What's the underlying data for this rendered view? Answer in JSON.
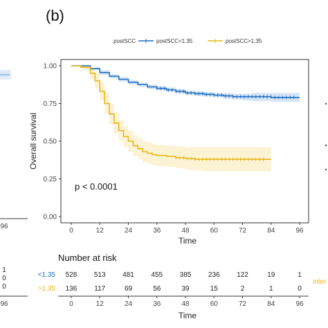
{
  "panel_label": "(b)",
  "chart_data": {
    "type": "line",
    "subtype": "kaplan-meier",
    "title": "",
    "xlabel": "Time",
    "ylabel": "Overall survival",
    "xlim": [
      0,
      96
    ],
    "ylim": [
      0,
      1
    ],
    "x_ticks": [
      0,
      12,
      24,
      36,
      48,
      60,
      72,
      84,
      96
    ],
    "y_ticks": [
      "0.00",
      "0.25",
      "0.50",
      "0.75",
      "1.00"
    ],
    "grid": false,
    "legend": {
      "position": "top",
      "title": "postSCC",
      "entries": [
        "postSCC<1.35",
        "postSCC>1.35"
      ]
    },
    "annotation": "p < 0.0001",
    "series": [
      {
        "name": "postSCC<1.35",
        "color": "#1f6fc1",
        "band_color": "#cfe0f3",
        "x": [
          0,
          4,
          8,
          12,
          16,
          20,
          24,
          28,
          32,
          36,
          40,
          44,
          48,
          52,
          56,
          60,
          64,
          68,
          72,
          76,
          80,
          84,
          88,
          92,
          96
        ],
        "y": [
          1.0,
          1.0,
          0.98,
          0.955,
          0.93,
          0.91,
          0.89,
          0.875,
          0.86,
          0.85,
          0.84,
          0.83,
          0.82,
          0.815,
          0.81,
          0.805,
          0.8,
          0.795,
          0.795,
          0.795,
          0.795,
          0.79,
          0.79,
          0.79,
          0.79
        ],
        "lower": [
          1.0,
          0.995,
          0.97,
          0.94,
          0.915,
          0.895,
          0.875,
          0.86,
          0.845,
          0.835,
          0.825,
          0.815,
          0.805,
          0.8,
          0.795,
          0.79,
          0.78,
          0.775,
          0.77,
          0.765,
          0.765,
          0.76,
          0.76,
          0.76,
          0.76
        ],
        "upper": [
          1.0,
          1.0,
          0.99,
          0.97,
          0.945,
          0.925,
          0.905,
          0.89,
          0.875,
          0.865,
          0.855,
          0.845,
          0.835,
          0.83,
          0.825,
          0.82,
          0.82,
          0.815,
          0.815,
          0.82,
          0.82,
          0.82,
          0.82,
          0.82,
          0.82
        ]
      },
      {
        "name": "postSCC>1.35",
        "color": "#e8b81a",
        "band_color": "#fbf0cc",
        "x": [
          0,
          4,
          8,
          10,
          12,
          14,
          16,
          18,
          20,
          22,
          24,
          26,
          28,
          30,
          32,
          34,
          36,
          40,
          44,
          48,
          52,
          56,
          60,
          64,
          68,
          72,
          76,
          80,
          84
        ],
        "y": [
          1.0,
          0.99,
          0.95,
          0.9,
          0.83,
          0.75,
          0.68,
          0.62,
          0.57,
          0.53,
          0.5,
          0.47,
          0.45,
          0.43,
          0.42,
          0.41,
          0.405,
          0.4,
          0.39,
          0.385,
          0.38,
          0.38,
          0.38,
          0.38,
          0.38,
          0.38,
          0.38,
          0.38,
          0.38
        ],
        "lower": [
          1.0,
          0.97,
          0.91,
          0.85,
          0.77,
          0.68,
          0.61,
          0.55,
          0.5,
          0.46,
          0.43,
          0.4,
          0.38,
          0.36,
          0.35,
          0.34,
          0.335,
          0.33,
          0.32,
          0.31,
          0.305,
          0.3,
          0.3,
          0.3,
          0.3,
          0.3,
          0.3,
          0.3,
          0.3
        ],
        "upper": [
          1.0,
          1.0,
          0.99,
          0.95,
          0.89,
          0.82,
          0.75,
          0.69,
          0.64,
          0.6,
          0.57,
          0.54,
          0.52,
          0.5,
          0.49,
          0.48,
          0.475,
          0.47,
          0.465,
          0.46,
          0.46,
          0.46,
          0.46,
          0.46,
          0.46,
          0.46,
          0.46,
          0.46,
          0.46
        ]
      }
    ],
    "risk_table": {
      "title": "Number at risk",
      "xlabel": "Time",
      "x_ticks": [
        0,
        12,
        24,
        36,
        48,
        60,
        72,
        84,
        96
      ],
      "rows": [
        {
          "label": "<1.35",
          "color": "#1f6fc1",
          "values": [
            "528",
            "513",
            "481",
            "455",
            "385",
            "236",
            "122",
            "19",
            "1"
          ]
        },
        {
          "label": ">1.35",
          "color": "#e8b81a",
          "values": [
            "136",
            "117",
            "69",
            "56",
            "39",
            "15",
            "2",
            "1",
            "0"
          ]
        }
      ]
    }
  },
  "left_fragment": {
    "tick_label": "96",
    "risk_values": [
      "1",
      "0",
      "0"
    ],
    "risk_tick_label": "96"
  },
  "right_fragment": {
    "risk_text": "inter"
  }
}
